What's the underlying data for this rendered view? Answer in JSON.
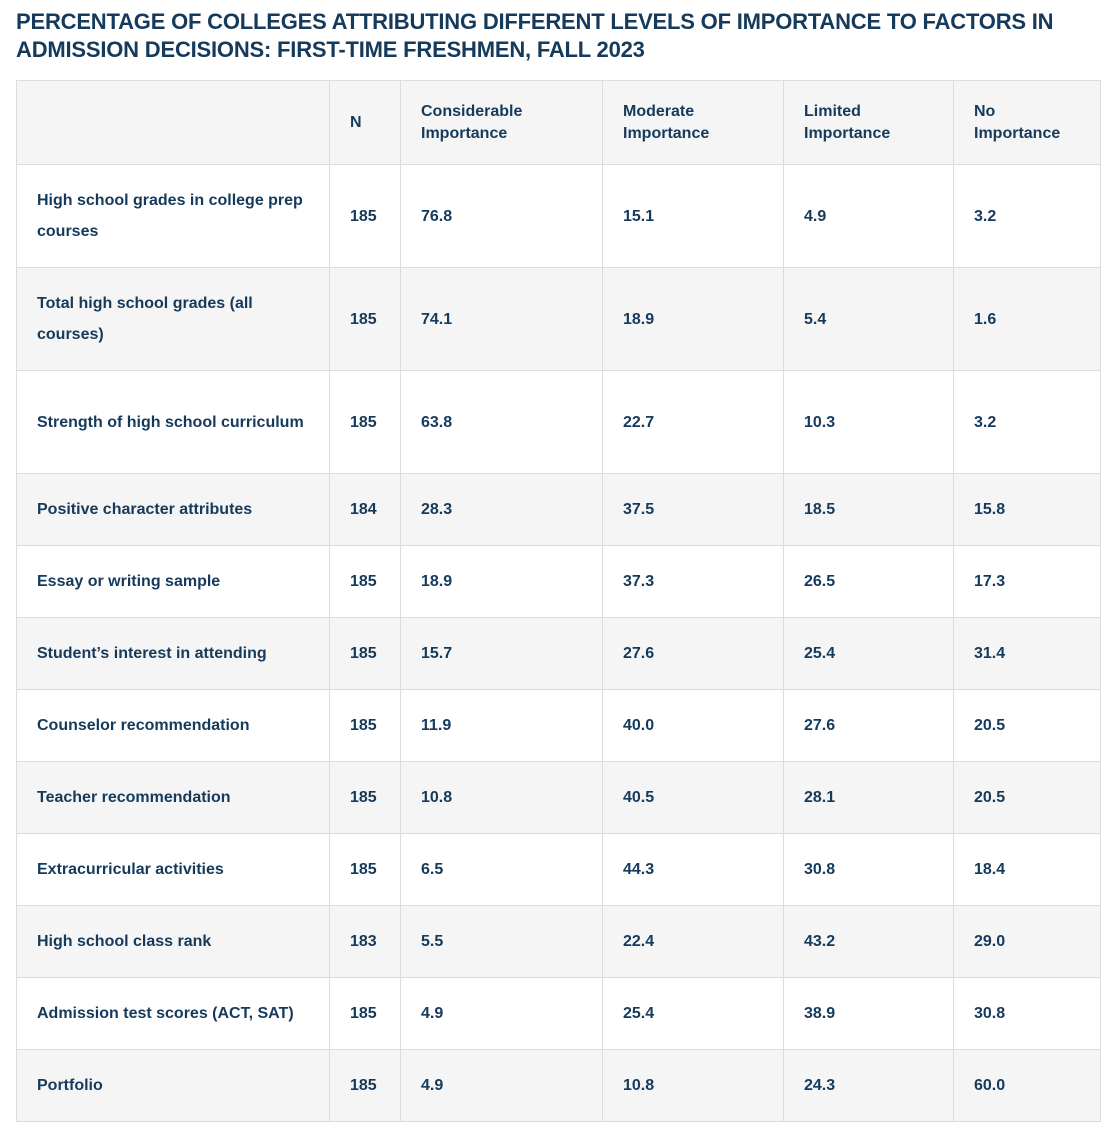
{
  "chart_data": {
    "type": "table",
    "title": "PERCENTAGE OF COLLEGES ATTRIBUTING DIFFERENT LEVELS OF IMPORTANCE TO FACTORS IN ADMISSION DECISIONS: FIRST-TIME FRESHMEN, FALL 2023",
    "columns": [
      "",
      "N",
      "Considerable Importance",
      "Moderate Importance",
      "Limited Importance",
      "No Importance"
    ],
    "rows": [
      {
        "factor": "High school grades in college prep courses",
        "n": "185",
        "considerable": "76.8",
        "moderate": "15.1",
        "limited": "4.9",
        "none": "3.2"
      },
      {
        "factor": "Total high school grades (all courses)",
        "n": "185",
        "considerable": "74.1",
        "moderate": "18.9",
        "limited": "5.4",
        "none": "1.6"
      },
      {
        "factor": "Strength of high school curriculum",
        "n": "185",
        "considerable": "63.8",
        "moderate": "22.7",
        "limited": "10.3",
        "none": "3.2"
      },
      {
        "factor": "Positive character attributes",
        "n": "184",
        "considerable": "28.3",
        "moderate": "37.5",
        "limited": "18.5",
        "none": "15.8"
      },
      {
        "factor": "Essay or writing sample",
        "n": "185",
        "considerable": "18.9",
        "moderate": "37.3",
        "limited": "26.5",
        "none": "17.3"
      },
      {
        "factor": "Student’s interest in attending",
        "n": "185",
        "considerable": "15.7",
        "moderate": "27.6",
        "limited": "25.4",
        "none": "31.4"
      },
      {
        "factor": "Counselor recommendation",
        "n": "185",
        "considerable": "11.9",
        "moderate": "40.0",
        "limited": "27.6",
        "none": "20.5"
      },
      {
        "factor": "Teacher recommendation",
        "n": "185",
        "considerable": "10.8",
        "moderate": "40.5",
        "limited": "28.1",
        "none": "20.5"
      },
      {
        "factor": "Extracurricular activities",
        "n": "185",
        "considerable": "6.5",
        "moderate": "44.3",
        "limited": "30.8",
        "none": "18.4"
      },
      {
        "factor": "High school class rank",
        "n": "183",
        "considerable": "5.5",
        "moderate": "22.4",
        "limited": "43.2",
        "none": "29.0"
      },
      {
        "factor": "Admission test scores (ACT, SAT)",
        "n": "185",
        "considerable": "4.9",
        "moderate": "25.4",
        "limited": "38.9",
        "none": "30.8"
      },
      {
        "factor": "Portfolio",
        "n": "185",
        "considerable": "4.9",
        "moderate": "10.8",
        "limited": "24.3",
        "none": "60.0"
      }
    ]
  },
  "colors": {
    "text": "#153a5b",
    "header_bg": "#f5f5f5",
    "border": "#dcdcdc"
  }
}
